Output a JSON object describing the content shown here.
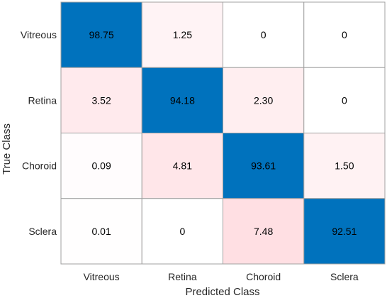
{
  "chart_data": {
    "type": "heatmap",
    "title": "",
    "xlabel": "Predicted Class",
    "ylabel": "True Class",
    "x_categories": [
      "Vitreous",
      "Retina",
      "Choroid",
      "Sclera"
    ],
    "y_categories": [
      "Vitreous",
      "Retina",
      "Choroid",
      "Sclera"
    ],
    "values": [
      [
        98.75,
        1.25,
        0,
        0
      ],
      [
        3.52,
        94.18,
        2.3,
        0
      ],
      [
        0.09,
        4.81,
        93.61,
        1.5
      ],
      [
        0.01,
        0,
        7.48,
        92.51
      ]
    ],
    "value_labels": [
      [
        "98.75",
        "1.25",
        "0",
        "0"
      ],
      [
        "3.52",
        "94.18",
        "2.30",
        "0"
      ],
      [
        "0.09",
        "4.81",
        "93.61",
        "1.50"
      ],
      [
        "0.01",
        "0",
        "7.48",
        "92.51"
      ]
    ],
    "grid": true,
    "colors": {
      "diagonal": "#0072bd",
      "off_diagonal_max": "#ffdfe3",
      "background": "#ffffff",
      "cell_border": "#a0a0a0",
      "text": "#262626"
    }
  }
}
